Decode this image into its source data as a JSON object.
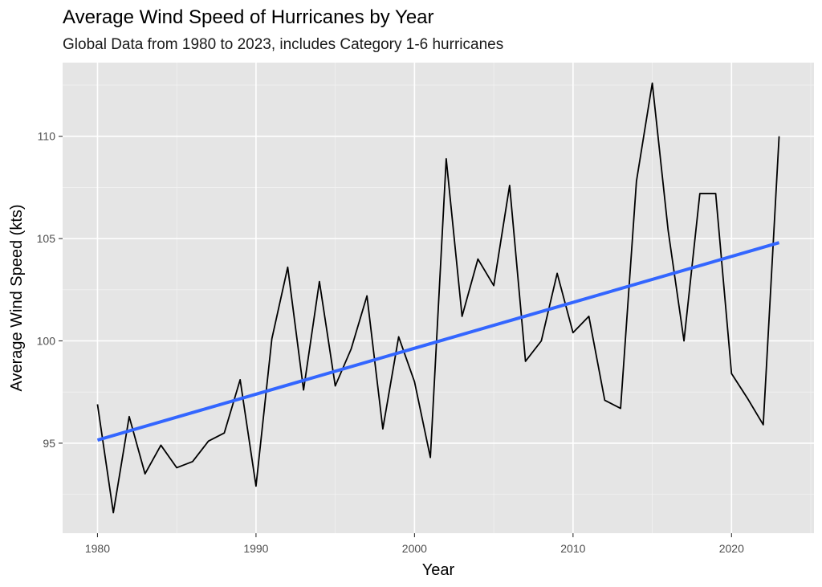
{
  "chart_data": {
    "type": "line",
    "title": "Average Wind Speed of Hurricanes by Year",
    "subtitle": "Global Data from 1980 to 2023, includes Category 1-6 hurricanes",
    "xlabel": "Year",
    "ylabel": "Average Wind Speed (kts)",
    "xlim": [
      1977.8,
      2025.2
    ],
    "ylim": [
      90.6,
      113.6
    ],
    "x_ticks": [
      1980,
      1990,
      2000,
      2010,
      2020
    ],
    "y_ticks": [
      95,
      100,
      105,
      110
    ],
    "grid": true,
    "background": "#e5e5e5",
    "series": [
      {
        "style": "line",
        "color": "#000000",
        "x": [
          1980,
          1981,
          1982,
          1983,
          1984,
          1985,
          1986,
          1987,
          1988,
          1989,
          1990,
          1991,
          1992,
          1993,
          1994,
          1995,
          1996,
          1997,
          1998,
          1999,
          2000,
          2001,
          2002,
          2003,
          2004,
          2005,
          2006,
          2007,
          2008,
          2009,
          2010,
          2011,
          2012,
          2013,
          2014,
          2015,
          2016,
          2017,
          2018,
          2019,
          2020,
          2021,
          2022,
          2023
        ],
        "y": [
          96.9,
          91.6,
          96.3,
          93.5,
          94.9,
          93.8,
          94.1,
          95.1,
          95.5,
          98.1,
          92.9,
          100.1,
          103.6,
          97.6,
          102.9,
          97.8,
          99.6,
          102.2,
          95.7,
          100.2,
          98.0,
          94.3,
          108.9,
          101.2,
          104.0,
          102.7,
          107.6,
          99.0,
          100.0,
          103.3,
          100.4,
          101.2,
          97.1,
          96.7,
          107.8,
          112.6,
          105.4,
          100.0,
          107.2,
          107.2,
          98.4,
          97.2,
          95.9,
          110.0
        ]
      },
      {
        "style": "trend",
        "color": "#3366ff",
        "x": [
          1980,
          2023
        ],
        "y": [
          95.15,
          104.8
        ]
      }
    ]
  }
}
